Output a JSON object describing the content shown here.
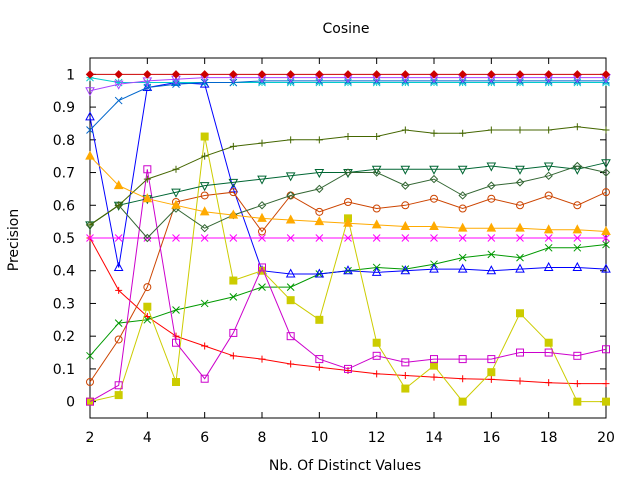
{
  "chart_data": {
    "type": "line",
    "title": "Cosine",
    "xlabel": "Nb. Of Distinct Values",
    "ylabel": "Precision",
    "xlim": [
      2,
      20
    ],
    "ylim": [
      -0.05,
      1.05
    ],
    "xticks": [
      2,
      4,
      6,
      8,
      10,
      12,
      14,
      16,
      18,
      20
    ],
    "yticks": [
      0,
      0.1,
      0.2,
      0.3,
      0.4,
      0.5,
      0.6,
      0.7,
      0.8,
      0.9,
      1
    ],
    "grid": false,
    "legend": "none",
    "x": [
      2,
      3,
      4,
      5,
      6,
      7,
      8,
      9,
      10,
      11,
      12,
      13,
      14,
      15,
      16,
      17,
      18,
      19,
      20
    ],
    "series": [
      {
        "color": "#ff0000",
        "marker": "plus",
        "values": [
          0.5,
          0.34,
          0.26,
          0.2,
          0.17,
          0.14,
          0.13,
          0.115,
          0.105,
          0.095,
          0.085,
          0.08,
          0.075,
          0.07,
          0.068,
          0.063,
          0.058,
          0.055,
          0.055
        ]
      },
      {
        "color": "#009900",
        "marker": "cross",
        "values": [
          0.14,
          0.24,
          0.25,
          0.28,
          0.3,
          0.32,
          0.35,
          0.35,
          0.39,
          0.4,
          0.41,
          0.405,
          0.42,
          0.44,
          0.45,
          0.44,
          0.47,
          0.47,
          0.48
        ]
      },
      {
        "color": "#0000ff",
        "marker": "triangle",
        "values": [
          0.87,
          0.41,
          0.96,
          0.975,
          0.97,
          0.65,
          0.4,
          0.39,
          0.39,
          0.4,
          0.395,
          0.4,
          0.405,
          0.405,
          0.4,
          0.405,
          0.41,
          0.41,
          0.405
        ]
      },
      {
        "color": "#ff00ff",
        "marker": "x",
        "values": [
          0.5,
          0.5,
          0.5,
          0.5,
          0.5,
          0.5,
          0.5,
          0.5,
          0.5,
          0.5,
          0.5,
          0.5,
          0.5,
          0.5,
          0.5,
          0.5,
          0.5,
          0.5,
          0.5
        ]
      },
      {
        "color": "#00cccc",
        "marker": "star",
        "values": [
          0.99,
          0.975,
          0.975,
          0.975,
          0.975,
          0.975,
          0.975,
          0.975,
          0.975,
          0.975,
          0.975,
          0.975,
          0.975,
          0.975,
          0.975,
          0.975,
          0.975,
          0.975,
          0.975
        ]
      },
      {
        "color": "#cc4400",
        "marker": "circle",
        "values": [
          0.06,
          0.19,
          0.35,
          0.61,
          0.63,
          0.64,
          0.52,
          0.63,
          0.58,
          0.61,
          0.59,
          0.6,
          0.62,
          0.59,
          0.62,
          0.6,
          0.63,
          0.6,
          0.64
        ]
      },
      {
        "color": "#cccc00",
        "marker": "square-filled",
        "values": [
          0.0,
          0.02,
          0.29,
          0.06,
          0.81,
          0.37,
          0.4,
          0.31,
          0.25,
          0.56,
          0.18,
          0.04,
          0.11,
          0.0,
          0.09,
          0.27,
          0.18,
          0.0,
          0.0
        ]
      },
      {
        "color": "#cc00cc",
        "marker": "square",
        "values": [
          0.0,
          0.05,
          0.71,
          0.18,
          0.07,
          0.21,
          0.41,
          0.2,
          0.13,
          0.1,
          0.14,
          0.12,
          0.13,
          0.13,
          0.13,
          0.15,
          0.15,
          0.14,
          0.16
        ]
      },
      {
        "color": "#006633",
        "marker": "triangle-down",
        "values": [
          0.54,
          0.6,
          0.62,
          0.64,
          0.66,
          0.67,
          0.68,
          0.69,
          0.7,
          0.7,
          0.71,
          0.71,
          0.71,
          0.71,
          0.72,
          0.71,
          0.72,
          0.71,
          0.73
        ]
      },
      {
        "color": "#336633",
        "marker": "diamond",
        "values": [
          0.54,
          0.6,
          0.5,
          0.59,
          0.53,
          0.57,
          0.6,
          0.63,
          0.65,
          0.7,
          0.7,
          0.66,
          0.68,
          0.63,
          0.66,
          0.67,
          0.69,
          0.72,
          0.7
        ]
      },
      {
        "color": "#446600",
        "marker": "plus",
        "values": [
          0.54,
          0.6,
          0.68,
          0.71,
          0.75,
          0.78,
          0.79,
          0.8,
          0.8,
          0.81,
          0.81,
          0.83,
          0.82,
          0.82,
          0.83,
          0.83,
          0.83,
          0.84,
          0.83
        ]
      },
      {
        "color": "#ffaa00",
        "marker": "triangle-filled",
        "values": [
          0.75,
          0.66,
          0.62,
          0.6,
          0.58,
          0.57,
          0.56,
          0.555,
          0.55,
          0.545,
          0.54,
          0.535,
          0.535,
          0.53,
          0.53,
          0.53,
          0.525,
          0.525,
          0.52
        ]
      },
      {
        "color": "#0066cc",
        "marker": "x",
        "values": [
          0.83,
          0.92,
          0.96,
          0.97,
          0.975,
          0.975,
          0.98,
          0.98,
          0.98,
          0.98,
          0.98,
          0.98,
          0.98,
          0.98,
          0.98,
          0.98,
          0.98,
          0.98,
          0.98
        ]
      },
      {
        "color": "#aa44ff",
        "marker": "triangle-down",
        "values": [
          0.95,
          0.97,
          0.98,
          0.985,
          0.99,
          0.99,
          0.99,
          0.99,
          0.99,
          0.99,
          0.99,
          0.99,
          0.99,
          0.99,
          0.99,
          0.99,
          0.99,
          0.99,
          0.99
        ]
      },
      {
        "color": "#cc0000",
        "marker": "diamond-filled",
        "values": [
          1.0,
          1.0,
          1.0,
          1.0,
          1.0,
          1.0,
          1.0,
          1.0,
          1.0,
          1.0,
          1.0,
          1.0,
          1.0,
          1.0,
          1.0,
          1.0,
          1.0,
          1.0,
          1.0
        ]
      }
    ]
  }
}
